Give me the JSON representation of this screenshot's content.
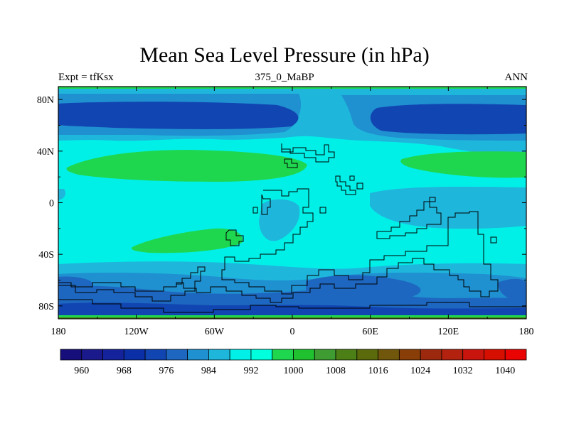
{
  "title": "Mean Sea Level Pressure (in hPa)",
  "subtitle_left": "Expt = tfKsx",
  "subtitle_center": "375_0_MaBP",
  "subtitle_right": "ANN",
  "map": {
    "projection": "cylindrical equidistant",
    "lon_range": [
      -180,
      180
    ],
    "lat_range": [
      -90,
      90
    ],
    "x_ticks": [
      {
        "value": -180,
        "label": "180"
      },
      {
        "value": -120,
        "label": "120W"
      },
      {
        "value": -60,
        "label": "60W"
      },
      {
        "value": 0,
        "label": "0"
      },
      {
        "value": 60,
        "label": "60E"
      },
      {
        "value": 120,
        "label": "120E"
      },
      {
        "value": 180,
        "label": "180"
      }
    ],
    "y_ticks": [
      {
        "value": 80,
        "label": "80N"
      },
      {
        "value": 40,
        "label": "40N"
      },
      {
        "value": 0,
        "label": "0"
      },
      {
        "value": -40,
        "label": "40S"
      },
      {
        "value": -80,
        "label": "80S"
      }
    ],
    "fields": {
      "background_level": 996,
      "low_north_left": {
        "lon_center": -130,
        "lat_center": 67,
        "level": 980
      },
      "low_north_right": {
        "lon_center": 125,
        "lat_center": 63,
        "level": 980
      },
      "high_north_atlantic": {
        "lon_center": -70,
        "lat_center": 28,
        "level": 1004
      },
      "high_north_pacific": {
        "lon_center": 125,
        "lat_center": 32,
        "level": 1004
      },
      "high_south": {
        "lon_center": -80,
        "lat_center": -35,
        "level": 1004
      },
      "southern_ocean_low_level": 984
    }
  },
  "colorbar": {
    "colors": [
      "#160E7A",
      "#1A1A8C",
      "#14239C",
      "#0B2FA6",
      "#1146B2",
      "#1E67C0",
      "#1F90D0",
      "#1FB6DC",
      "#00F0E8",
      "#00FFDC",
      "#1FD74F",
      "#1FC12F",
      "#3E9C32",
      "#4C7F15",
      "#5B6A0A",
      "#71570C",
      "#893D07",
      "#9C290E",
      "#B3210F",
      "#C9150D",
      "#D60F00",
      "#E90303"
    ],
    "labels": [
      "960",
      "968",
      "976",
      "984",
      "992",
      "1000",
      "1008",
      "1016",
      "1024",
      "1032",
      "1040"
    ],
    "units": "hPa"
  }
}
